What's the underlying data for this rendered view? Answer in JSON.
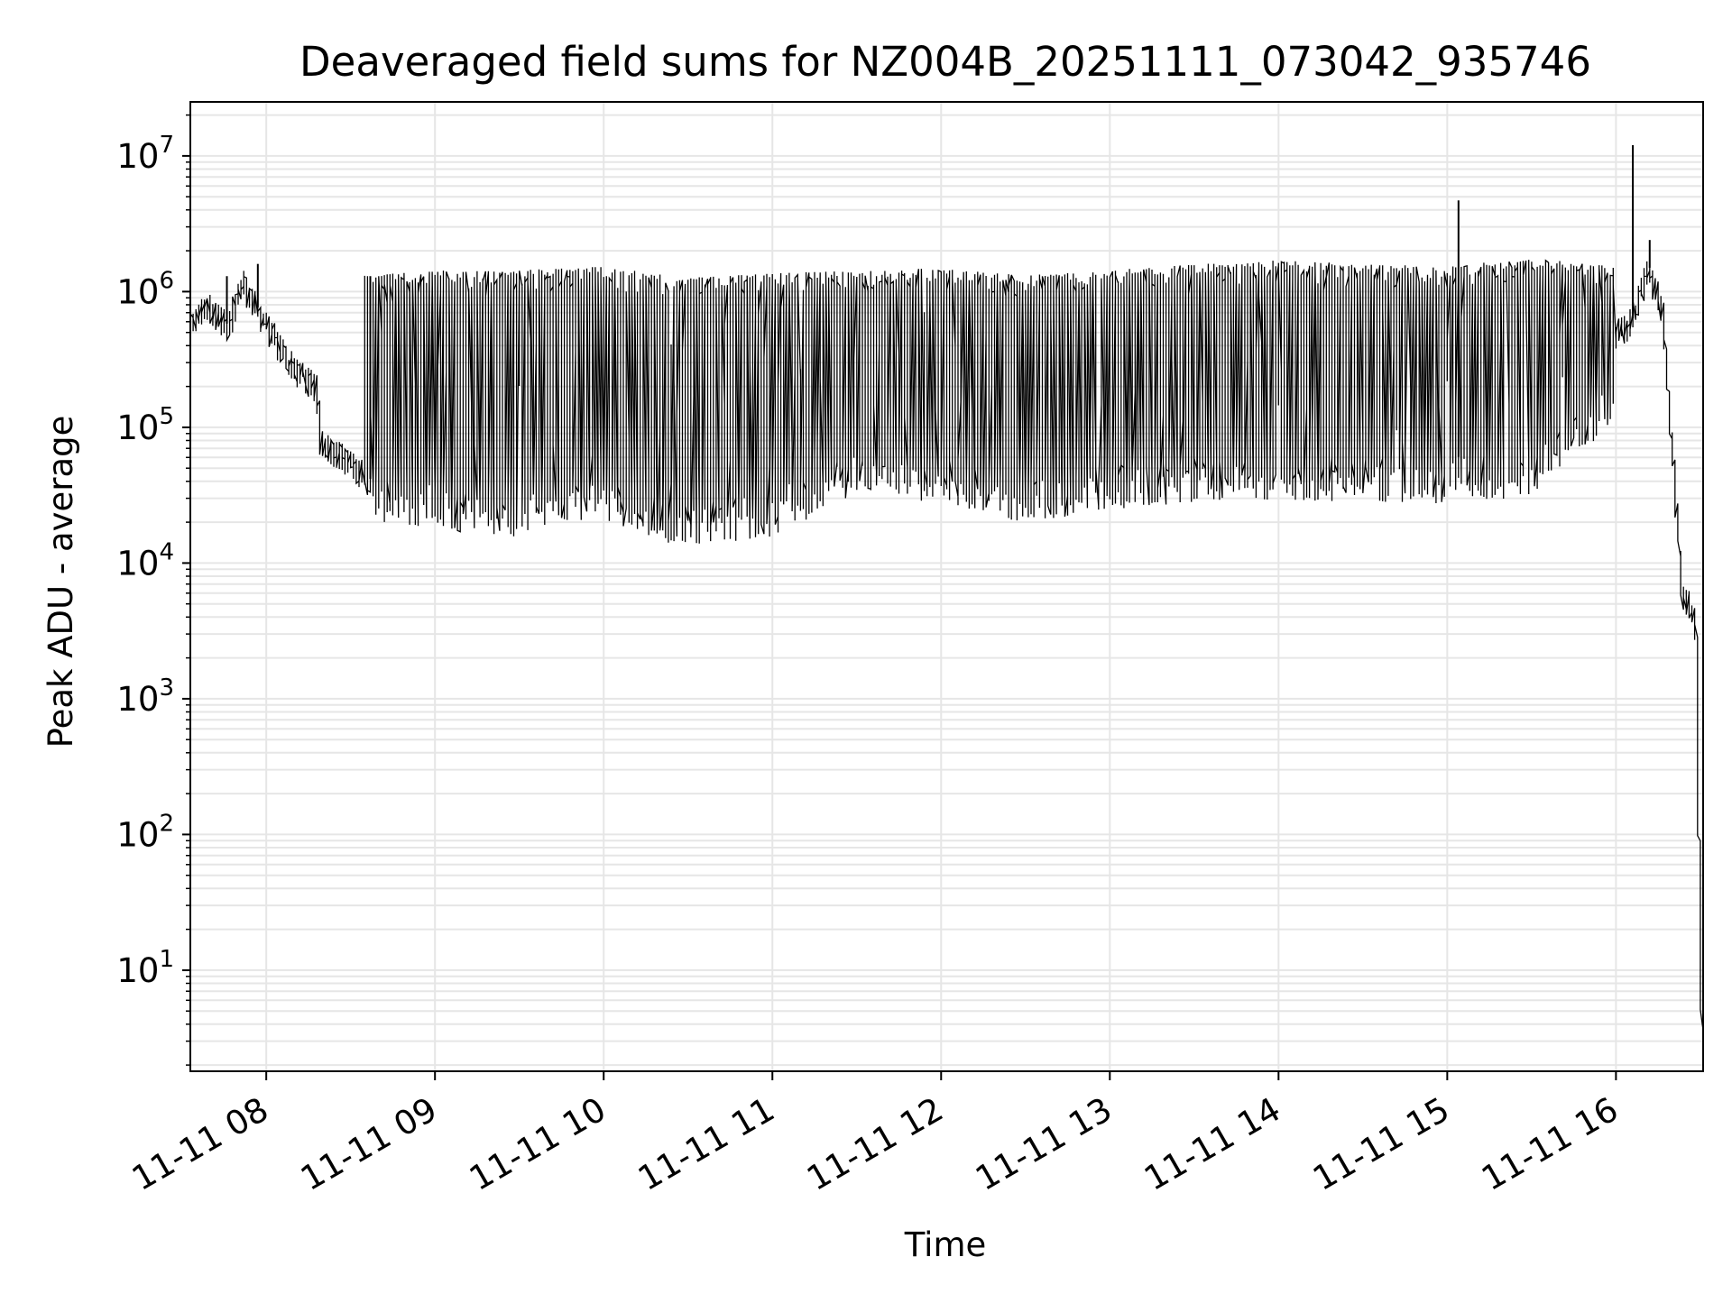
{
  "chart_data": {
    "type": "line",
    "title": "Deaveraged field sums for NZ004B_20251111_073042_935746",
    "xlabel": "Time",
    "ylabel": "Peak ADU - average",
    "yscale": "log",
    "ylim": [
      1.8,
      25000000
    ],
    "xlim": [
      "2025-11-11 07:33",
      "2025-11-11 16:31"
    ],
    "grid": true,
    "x_tick_labels": [
      "11-11 08",
      "11-11 09",
      "11-11 10",
      "11-11 11",
      "11-11 12",
      "11-11 13",
      "11-11 14",
      "11-11 15",
      "11-11 16"
    ],
    "x_ticks": [
      "2025-11-11 08:00",
      "2025-11-11 09:00",
      "2025-11-11 10:00",
      "2025-11-11 11:00",
      "2025-11-11 12:00",
      "2025-11-11 13:00",
      "2025-11-11 14:00",
      "2025-11-11 15:00",
      "2025-11-11 16:00"
    ],
    "y_ticks": [
      {
        "value": 10,
        "base": "10",
        "exp": "1"
      },
      {
        "value": 100,
        "base": "10",
        "exp": "2"
      },
      {
        "value": 1000,
        "base": "10",
        "exp": "3"
      },
      {
        "value": 10000,
        "base": "10",
        "exp": "4"
      },
      {
        "value": 100000,
        "base": "10",
        "exp": "5"
      },
      {
        "value": 1000000,
        "base": "10",
        "exp": "6"
      },
      {
        "value": 10000000,
        "base": "10",
        "exp": "7"
      }
    ],
    "line_color": "#000000",
    "grid_color": "#e6e6e6",
    "series": [
      {
        "values_note_free": true,
        "x": [
          "2025-11-11 07:33",
          "2025-11-11 07:40",
          "2025-11-11 07:47",
          "2025-11-11 07:52",
          "2025-11-11 07:58",
          "2025-11-11 08:05",
          "2025-11-11 08:12",
          "2025-11-11 08:18",
          "2025-11-11 08:20",
          "2025-11-11 08:28",
          "2025-11-11 08:38",
          "2025-11-11 08:50",
          "2025-11-11 09:05",
          "2025-11-11 09:20",
          "2025-11-11 09:35",
          "2025-11-11 09:50",
          "2025-11-11 10:05",
          "2025-11-11 10:15",
          "2025-11-11 10:25",
          "2025-11-11 10:35",
          "2025-11-11 10:45",
          "2025-11-11 10:55",
          "2025-11-11 11:10",
          "2025-11-11 11:30",
          "2025-11-11 11:50",
          "2025-11-11 12:10",
          "2025-11-11 12:30",
          "2025-11-11 12:50",
          "2025-11-11 13:10",
          "2025-11-11 13:30",
          "2025-11-11 13:50",
          "2025-11-11 14:10",
          "2025-11-11 14:30",
          "2025-11-11 14:50",
          "2025-11-11 15:05",
          "2025-11-11 15:20",
          "2025-11-11 15:40",
          "2025-11-11 15:55",
          "2025-11-11 16:05",
          "2025-11-11 16:12",
          "2025-11-11 16:17",
          "2025-11-11 16:20",
          "2025-11-11 16:24",
          "2025-11-11 16:27",
          "2025-11-11 16:29",
          "2025-11-11 16:31"
        ],
        "y": [
          550000,
          800000,
          550000,
          1200000,
          700000,
          400000,
          250000,
          200000,
          80000,
          60000,
          40000,
          30000,
          35000,
          30000,
          40000,
          60000,
          65000,
          50000,
          25000,
          30000,
          28000,
          35000,
          55000,
          80000,
          100000,
          70000,
          50000,
          45000,
          55000,
          80000,
          150000,
          100000,
          80000,
          70000,
          60000,
          120000,
          250000,
          450000,
          550000,
          1500000,
          700000,
          100000,
          6000,
          5000,
          3000,
          3
        ]
      }
    ],
    "spikes": [
      {
        "x": "2025-11-11 07:46",
        "y": 1300000
      },
      {
        "x": "2025-11-11 07:57",
        "y": 1600000
      },
      {
        "x": "2025-11-11 08:37",
        "y": 1300000
      },
      {
        "x": "2025-11-11 15:04",
        "y": 4700000
      },
      {
        "x": "2025-11-11 16:06",
        "y": 12000000
      },
      {
        "x": "2025-11-11 16:12",
        "y": 2400000
      }
    ],
    "band_envelope": {
      "x": [
        "2025-11-11 08:35",
        "2025-11-11 09:00",
        "2025-11-11 09:30",
        "2025-11-11 10:00",
        "2025-11-11 10:30",
        "2025-11-11 11:00",
        "2025-11-11 11:30",
        "2025-11-11 12:00",
        "2025-11-11 12:30",
        "2025-11-11 13:00",
        "2025-11-11 13:30",
        "2025-11-11 14:00",
        "2025-11-11 14:30",
        "2025-11-11 15:00",
        "2025-11-11 15:30",
        "2025-11-11 16:00"
      ],
      "upper": [
        1200000,
        1300000,
        1300000,
        1400000,
        1150000,
        1250000,
        1300000,
        1350000,
        1200000,
        1300000,
        1450000,
        1550000,
        1450000,
        1400000,
        1600000,
        1400000
      ],
      "lower": [
        30000,
        25000,
        22000,
        30000,
        18000,
        22000,
        45000,
        40000,
        28000,
        35000,
        40000,
        42000,
        40000,
        38000,
        45000,
        150000
      ]
    }
  }
}
